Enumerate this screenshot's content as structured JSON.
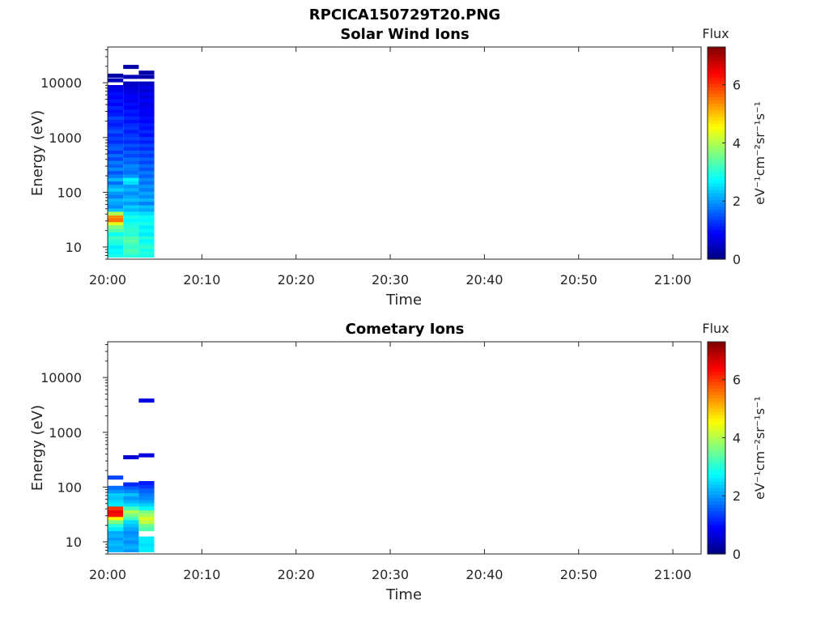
{
  "figure_title": "RPCICA150729T20.PNG",
  "chart_data": [
    {
      "type": "heatmap",
      "title": "Solar Wind Ions",
      "xlabel": "Time",
      "ylabel": "Energy (eV)",
      "y_scale": "log",
      "xlim_minutes": [
        0,
        63
      ],
      "ylim": [
        6,
        45000
      ],
      "x_tick_labels": [
        "20:00",
        "20:10",
        "20:20",
        "20:30",
        "20:40",
        "20:50",
        "21:00"
      ],
      "x_tick_minutes": [
        0,
        10,
        20,
        30,
        40,
        50,
        60
      ],
      "y_tick_labels": [
        "10",
        "100",
        "1000",
        "10000"
      ],
      "y_tick_values": [
        10,
        100,
        1000,
        10000
      ],
      "colorbar": {
        "label": "Flux",
        "units": "eV⁻¹cm⁻²sr⁻¹s⁻¹",
        "range": [
          0,
          7.3
        ],
        "tick_labels": [
          "0",
          "2",
          "4",
          "6"
        ],
        "tick_values": [
          0,
          2,
          4,
          6
        ],
        "colormap": "jet"
      },
      "columns": [
        {
          "t_start": 0.0,
          "t_end": 1.65,
          "cells": [
            {
              "e": 7,
              "v": 2.9
            },
            {
              "e": 8,
              "v": 2.7
            },
            {
              "e": 9,
              "v": 2.8
            },
            {
              "e": 10,
              "v": 2.6
            },
            {
              "e": 11.5,
              "v": 2.9
            },
            {
              "e": 13,
              "v": 3.0
            },
            {
              "e": 15,
              "v": 3.2
            },
            {
              "e": 17,
              "v": 2.8
            },
            {
              "e": 20,
              "v": 3.3
            },
            {
              "e": 23,
              "v": 3.6
            },
            {
              "e": 27,
              "v": 4.4
            },
            {
              "e": 31,
              "v": 5.6
            },
            {
              "e": 36,
              "v": 5.4
            },
            {
              "e": 41,
              "v": 4.0
            },
            {
              "e": 48,
              "v": 2.3
            },
            {
              "e": 55,
              "v": 1.9
            },
            {
              "e": 63,
              "v": 2.1
            },
            {
              "e": 73,
              "v": 2.2
            },
            {
              "e": 84,
              "v": 1.8
            },
            {
              "e": 97,
              "v": 2.0
            },
            {
              "e": 112,
              "v": 2.4
            },
            {
              "e": 129,
              "v": 2.1
            },
            {
              "e": 149,
              "v": 1.7
            },
            {
              "e": 172,
              "v": 2.2
            },
            {
              "e": 199,
              "v": 1.8
            },
            {
              "e": 230,
              "v": 1.5
            },
            {
              "e": 265,
              "v": 1.9
            },
            {
              "e": 306,
              "v": 1.6
            },
            {
              "e": 353,
              "v": 1.8
            },
            {
              "e": 408,
              "v": 1.4
            },
            {
              "e": 471,
              "v": 1.7
            },
            {
              "e": 544,
              "v": 1.3
            },
            {
              "e": 628,
              "v": 1.6
            },
            {
              "e": 725,
              "v": 1.5
            },
            {
              "e": 837,
              "v": 1.2
            },
            {
              "e": 966,
              "v": 1.4
            },
            {
              "e": 1116,
              "v": 1.2
            },
            {
              "e": 1288,
              "v": 1.5
            },
            {
              "e": 1487,
              "v": 1.3
            },
            {
              "e": 1717,
              "v": 1.1
            },
            {
              "e": 1983,
              "v": 1.2
            },
            {
              "e": 2289,
              "v": 1.4
            },
            {
              "e": 2643,
              "v": 1.1
            },
            {
              "e": 3052,
              "v": 1.0
            },
            {
              "e": 3524,
              "v": 1.2
            },
            {
              "e": 4069,
              "v": 0.9
            },
            {
              "e": 4698,
              "v": 1.1
            },
            {
              "e": 5424,
              "v": 0.9
            },
            {
              "e": 6263,
              "v": 1.0
            },
            {
              "e": 7231,
              "v": 0.8
            },
            {
              "e": 8350,
              "v": 0.7
            },
            {
              "e": 11100,
              "v": 0.4
            },
            {
              "e": 13500,
              "v": 0.3
            }
          ]
        },
        {
          "t_start": 1.65,
          "t_end": 3.3,
          "cells": [
            {
              "e": 7,
              "v": 3.0
            },
            {
              "e": 8,
              "v": 3.2
            },
            {
              "e": 9,
              "v": 3.3
            },
            {
              "e": 10,
              "v": 3.1
            },
            {
              "e": 11.5,
              "v": 3.2
            },
            {
              "e": 13,
              "v": 3.4
            },
            {
              "e": 15,
              "v": 3.3
            },
            {
              "e": 17,
              "v": 3.0
            },
            {
              "e": 20,
              "v": 3.1
            },
            {
              "e": 23,
              "v": 3.0
            },
            {
              "e": 27,
              "v": 2.9
            },
            {
              "e": 31,
              "v": 2.7
            },
            {
              "e": 36,
              "v": 2.9
            },
            {
              "e": 41,
              "v": 2.6
            },
            {
              "e": 48,
              "v": 2.2
            },
            {
              "e": 55,
              "v": 2.4
            },
            {
              "e": 63,
              "v": 2.0
            },
            {
              "e": 73,
              "v": 2.3
            },
            {
              "e": 84,
              "v": 2.1
            },
            {
              "e": 97,
              "v": 1.9
            },
            {
              "e": 112,
              "v": 2.2
            },
            {
              "e": 129,
              "v": 2.0
            },
            {
              "e": 149,
              "v": 2.5
            },
            {
              "e": 172,
              "v": 2.7
            },
            {
              "e": 199,
              "v": 2.0
            },
            {
              "e": 230,
              "v": 1.7
            },
            {
              "e": 265,
              "v": 1.8
            },
            {
              "e": 306,
              "v": 1.9
            },
            {
              "e": 353,
              "v": 1.6
            },
            {
              "e": 408,
              "v": 1.7
            },
            {
              "e": 471,
              "v": 1.4
            },
            {
              "e": 544,
              "v": 1.6
            },
            {
              "e": 628,
              "v": 1.3
            },
            {
              "e": 725,
              "v": 1.5
            },
            {
              "e": 837,
              "v": 1.2
            },
            {
              "e": 966,
              "v": 1.4
            },
            {
              "e": 1116,
              "v": 1.3
            },
            {
              "e": 1288,
              "v": 1.1
            },
            {
              "e": 1487,
              "v": 1.3
            },
            {
              "e": 1717,
              "v": 1.2
            },
            {
              "e": 1983,
              "v": 1.0
            },
            {
              "e": 2289,
              "v": 1.2
            },
            {
              "e": 2643,
              "v": 1.0
            },
            {
              "e": 3052,
              "v": 1.1
            },
            {
              "e": 3524,
              "v": 0.9
            },
            {
              "e": 4069,
              "v": 1.0
            },
            {
              "e": 4698,
              "v": 0.8
            },
            {
              "e": 5424,
              "v": 0.9
            },
            {
              "e": 6263,
              "v": 0.8
            },
            {
              "e": 7231,
              "v": 0.7
            },
            {
              "e": 8350,
              "v": 0.6
            },
            {
              "e": 9700,
              "v": 0.5
            },
            {
              "e": 12800,
              "v": 0.4
            },
            {
              "e": 19500,
              "v": 0.3
            }
          ]
        },
        {
          "t_start": 3.3,
          "t_end": 4.95,
          "cells": [
            {
              "e": 7,
              "v": 2.9
            },
            {
              "e": 8,
              "v": 3.0
            },
            {
              "e": 9,
              "v": 2.8
            },
            {
              "e": 10,
              "v": 3.1
            },
            {
              "e": 11.5,
              "v": 2.9
            },
            {
              "e": 13,
              "v": 2.7
            },
            {
              "e": 15,
              "v": 3.0
            },
            {
              "e": 17,
              "v": 2.6
            },
            {
              "e": 20,
              "v": 2.8
            },
            {
              "e": 23,
              "v": 2.6
            },
            {
              "e": 27,
              "v": 2.9
            },
            {
              "e": 31,
              "v": 2.7
            },
            {
              "e": 36,
              "v": 2.8
            },
            {
              "e": 41,
              "v": 2.5
            },
            {
              "e": 48,
              "v": 2.1
            },
            {
              "e": 55,
              "v": 2.3
            },
            {
              "e": 63,
              "v": 1.8
            },
            {
              "e": 73,
              "v": 2.2
            },
            {
              "e": 84,
              "v": 1.9
            },
            {
              "e": 97,
              "v": 2.1
            },
            {
              "e": 112,
              "v": 1.8
            },
            {
              "e": 129,
              "v": 2.0
            },
            {
              "e": 149,
              "v": 1.7
            },
            {
              "e": 172,
              "v": 1.9
            },
            {
              "e": 199,
              "v": 1.6
            },
            {
              "e": 230,
              "v": 1.8
            },
            {
              "e": 265,
              "v": 1.5
            },
            {
              "e": 306,
              "v": 1.7
            },
            {
              "e": 353,
              "v": 1.4
            },
            {
              "e": 408,
              "v": 1.6
            },
            {
              "e": 471,
              "v": 1.3
            },
            {
              "e": 544,
              "v": 1.5
            },
            {
              "e": 628,
              "v": 1.2
            },
            {
              "e": 725,
              "v": 1.4
            },
            {
              "e": 837,
              "v": 1.1
            },
            {
              "e": 966,
              "v": 1.3
            },
            {
              "e": 1116,
              "v": 1.0
            },
            {
              "e": 1288,
              "v": 1.2
            },
            {
              "e": 1487,
              "v": 1.0
            },
            {
              "e": 1717,
              "v": 1.1
            },
            {
              "e": 1983,
              "v": 0.9
            },
            {
              "e": 2289,
              "v": 1.0
            },
            {
              "e": 2643,
              "v": 0.8
            },
            {
              "e": 3052,
              "v": 0.9
            },
            {
              "e": 3524,
              "v": 0.8
            },
            {
              "e": 4069,
              "v": 0.7
            },
            {
              "e": 4698,
              "v": 0.9
            },
            {
              "e": 5424,
              "v": 0.7
            },
            {
              "e": 6263,
              "v": 0.8
            },
            {
              "e": 7231,
              "v": 0.6
            },
            {
              "e": 8350,
              "v": 0.7
            },
            {
              "e": 9700,
              "v": 0.5
            },
            {
              "e": 12800,
              "v": 0.3
            },
            {
              "e": 15300,
              "v": 0.3
            }
          ]
        }
      ]
    },
    {
      "type": "heatmap",
      "title": "Cometary Ions",
      "xlabel": "Time",
      "ylabel": "Energy (eV)",
      "y_scale": "log",
      "xlim_minutes": [
        0,
        63
      ],
      "ylim": [
        6,
        45000
      ],
      "x_tick_labels": [
        "20:00",
        "20:10",
        "20:20",
        "20:30",
        "20:40",
        "20:50",
        "21:00"
      ],
      "x_tick_minutes": [
        0,
        10,
        20,
        30,
        40,
        50,
        60
      ],
      "y_tick_labels": [
        "10",
        "100",
        "1000",
        "10000"
      ],
      "y_tick_values": [
        10,
        100,
        1000,
        10000
      ],
      "colorbar": {
        "label": "Flux",
        "units": "eV⁻¹cm⁻²sr⁻¹s⁻¹",
        "range": [
          0,
          7.3
        ],
        "tick_labels": [
          "0",
          "2",
          "4",
          "6"
        ],
        "tick_values": [
          0,
          2,
          4,
          6
        ],
        "colormap": "jet"
      },
      "columns": [
        {
          "t_start": 0.0,
          "t_end": 1.65,
          "cells": [
            {
              "e": 7,
              "v": 2.2
            },
            {
              "e": 8,
              "v": 2.1
            },
            {
              "e": 9,
              "v": 2.3
            },
            {
              "e": 10,
              "v": 2.2
            },
            {
              "e": 11.5,
              "v": 2.0
            },
            {
              "e": 13,
              "v": 2.2
            },
            {
              "e": 15,
              "v": 2.1
            },
            {
              "e": 17,
              "v": 2.6
            },
            {
              "e": 20,
              "v": 3.0
            },
            {
              "e": 23,
              "v": 3.6
            },
            {
              "e": 27,
              "v": 4.6
            },
            {
              "e": 31,
              "v": 6.3
            },
            {
              "e": 36,
              "v": 6.5
            },
            {
              "e": 41,
              "v": 6.0
            },
            {
              "e": 48,
              "v": 2.6
            },
            {
              "e": 55,
              "v": 2.5
            },
            {
              "e": 63,
              "v": 2.3
            },
            {
              "e": 73,
              "v": 2.4
            },
            {
              "e": 84,
              "v": 2.0
            },
            {
              "e": 97,
              "v": 1.7
            },
            {
              "e": 149,
              "v": 1.4
            }
          ]
        },
        {
          "t_start": 1.65,
          "t_end": 3.3,
          "cells": [
            {
              "e": 7,
              "v": 2.0
            },
            {
              "e": 8,
              "v": 2.2
            },
            {
              "e": 9,
              "v": 2.1
            },
            {
              "e": 10,
              "v": 1.9
            },
            {
              "e": 11.5,
              "v": 2.1
            },
            {
              "e": 13,
              "v": 2.0
            },
            {
              "e": 15,
              "v": 1.9
            },
            {
              "e": 17,
              "v": 2.1
            },
            {
              "e": 20,
              "v": 2.3
            },
            {
              "e": 23,
              "v": 2.5
            },
            {
              "e": 27,
              "v": 3.2
            },
            {
              "e": 31,
              "v": 3.6
            },
            {
              "e": 36,
              "v": 4.0
            },
            {
              "e": 41,
              "v": 3.2
            },
            {
              "e": 48,
              "v": 2.5
            },
            {
              "e": 55,
              "v": 2.2
            },
            {
              "e": 63,
              "v": 2.0
            },
            {
              "e": 73,
              "v": 2.3
            },
            {
              "e": 84,
              "v": 1.9
            },
            {
              "e": 97,
              "v": 1.6
            },
            {
              "e": 112,
              "v": 1.2
            },
            {
              "e": 350,
              "v": 0.6
            }
          ]
        },
        {
          "t_start": 3.3,
          "t_end": 4.95,
          "cells": [
            {
              "e": 7,
              "v": 2.6
            },
            {
              "e": 8,
              "v": 2.6
            },
            {
              "e": 9,
              "v": 2.5
            },
            {
              "e": 10,
              "v": 2.6
            },
            {
              "e": 11.5,
              "v": 2.6
            },
            {
              "e": 17,
              "v": 3.3
            },
            {
              "e": 20,
              "v": 3.5
            },
            {
              "e": 23,
              "v": 4.1
            },
            {
              "e": 27,
              "v": 4.3
            },
            {
              "e": 31,
              "v": 3.9
            },
            {
              "e": 36,
              "v": 3.6
            },
            {
              "e": 41,
              "v": 2.7
            },
            {
              "e": 48,
              "v": 2.4
            },
            {
              "e": 55,
              "v": 2.1
            },
            {
              "e": 63,
              "v": 1.9
            },
            {
              "e": 73,
              "v": 1.8
            },
            {
              "e": 84,
              "v": 1.6
            },
            {
              "e": 100,
              "v": 1.3
            },
            {
              "e": 118,
              "v": 1.1
            },
            {
              "e": 380,
              "v": 0.7
            },
            {
              "e": 3800,
              "v": 0.7
            }
          ]
        }
      ]
    }
  ]
}
